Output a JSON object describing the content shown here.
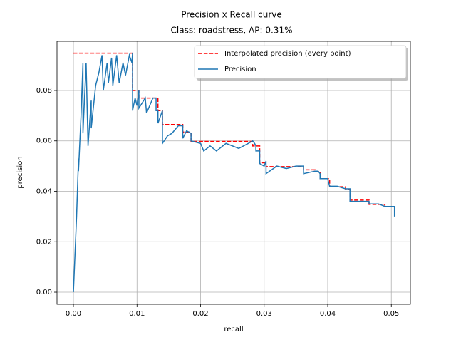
{
  "chart_data": {
    "type": "line",
    "title": "Precision x Recall curve",
    "subtitle": "Class: roadstress, AP: 0.31%",
    "x_label": "recall",
    "y_label": "precision",
    "xlim": [
      -0.00258,
      0.053
    ],
    "ylim": [
      -0.0048,
      0.0995
    ],
    "xticks": [
      {
        "value": 0,
        "label": "0.00"
      },
      {
        "value": 0.01,
        "label": "0.01"
      },
      {
        "value": 0.02,
        "label": "0.02"
      },
      {
        "value": 0.03,
        "label": "0.03"
      },
      {
        "value": 0.04,
        "label": "0.04"
      },
      {
        "value": 0.05,
        "label": "0.05"
      }
    ],
    "yticks": [
      {
        "value": 0,
        "label": "0.00"
      },
      {
        "value": 0.02,
        "label": "0.02"
      },
      {
        "value": 0.04,
        "label": "0.04"
      },
      {
        "value": 0.06,
        "label": "0.06"
      },
      {
        "value": 0.08,
        "label": "0.08"
      }
    ],
    "grid": true,
    "legend": "upper right",
    "series": [
      {
        "name": "Interpolated precision (every point)",
        "color": "#ff0000",
        "linestyle": "dashed",
        "x": [
          0,
          0.0093,
          0.0093,
          0.0103,
          0.0103,
          0.0133,
          0.0133,
          0.014,
          0.014,
          0.0172,
          0.0172,
          0.0185,
          0.0185,
          0.0282,
          0.0282,
          0.0293,
          0.0293,
          0.0303,
          0.0303,
          0.0362,
          0.0362,
          0.038,
          0.038,
          0.0388,
          0.0388,
          0.0403,
          0.0403,
          0.0428,
          0.0428,
          0.0435,
          0.0435,
          0.0465,
          0.0465,
          0.049,
          0.049,
          0.0505
        ],
        "values": [
          0.0948,
          0.0948,
          0.08,
          0.08,
          0.077,
          0.077,
          0.072,
          0.072,
          0.0665,
          0.0665,
          0.0635,
          0.0635,
          0.0598,
          0.0598,
          0.058,
          0.058,
          0.0513,
          0.0513,
          0.0498,
          0.0498,
          0.0485,
          0.0485,
          0.0478,
          0.0478,
          0.045,
          0.045,
          0.0418,
          0.0418,
          0.0408,
          0.0408,
          0.0365,
          0.0365,
          0.0348,
          0.0348,
          0.034,
          0.034
        ]
      },
      {
        "name": "Precision",
        "color": "#1f77b4",
        "linestyle": "solid",
        "x": [
          0,
          0.0005,
          0.0008,
          0.0008,
          0.0012,
          0.0015,
          0.0015,
          0.002,
          0.0023,
          0.0028,
          0.0028,
          0.0035,
          0.004,
          0.0045,
          0.0047,
          0.0053,
          0.0055,
          0.006,
          0.0062,
          0.0068,
          0.0072,
          0.0078,
          0.0082,
          0.0088,
          0.0092,
          0.0093,
          0.0093,
          0.0097,
          0.01,
          0.0103,
          0.0103,
          0.0113,
          0.0115,
          0.0125,
          0.013,
          0.013,
          0.0133,
          0.0133,
          0.014,
          0.014,
          0.0148,
          0.0155,
          0.0165,
          0.0172,
          0.0172,
          0.0178,
          0.0185,
          0.0185,
          0.02,
          0.0205,
          0.0215,
          0.0225,
          0.024,
          0.026,
          0.0275,
          0.0282,
          0.0285,
          0.0287,
          0.0287,
          0.0293,
          0.0293,
          0.03,
          0.0303,
          0.0303,
          0.032,
          0.0335,
          0.035,
          0.0362,
          0.0362,
          0.038,
          0.0385,
          0.0388,
          0.0388,
          0.04,
          0.0403,
          0.0415,
          0.0428,
          0.0435,
          0.0435,
          0.0455,
          0.0465,
          0.0465,
          0.048,
          0.049,
          0.05,
          0.0505,
          0.0505
        ],
        "values": [
          0,
          0.03,
          0.053,
          0.048,
          0.07,
          0.091,
          0.063,
          0.091,
          0.058,
          0.076,
          0.065,
          0.082,
          0.087,
          0.094,
          0.08,
          0.091,
          0.083,
          0.093,
          0.082,
          0.094,
          0.083,
          0.091,
          0.086,
          0.094,
          0.091,
          0.095,
          0.072,
          0.077,
          0.074,
          0.08,
          0.073,
          0.077,
          0.071,
          0.077,
          0.077,
          0.072,
          0.072,
          0.067,
          0.072,
          0.059,
          0.062,
          0.063,
          0.066,
          0.066,
          0.061,
          0.064,
          0.063,
          0.06,
          0.059,
          0.056,
          0.058,
          0.056,
          0.059,
          0.057,
          0.059,
          0.06,
          0.059,
          0.058,
          0.056,
          0.056,
          0.051,
          0.05,
          0.052,
          0.047,
          0.05,
          0.049,
          0.05,
          0.05,
          0.047,
          0.048,
          0.048,
          0.047,
          0.045,
          0.045,
          0.042,
          0.042,
          0.041,
          0.041,
          0.036,
          0.036,
          0.036,
          0.035,
          0.035,
          0.034,
          0.034,
          0.034,
          0.03
        ]
      }
    ]
  }
}
